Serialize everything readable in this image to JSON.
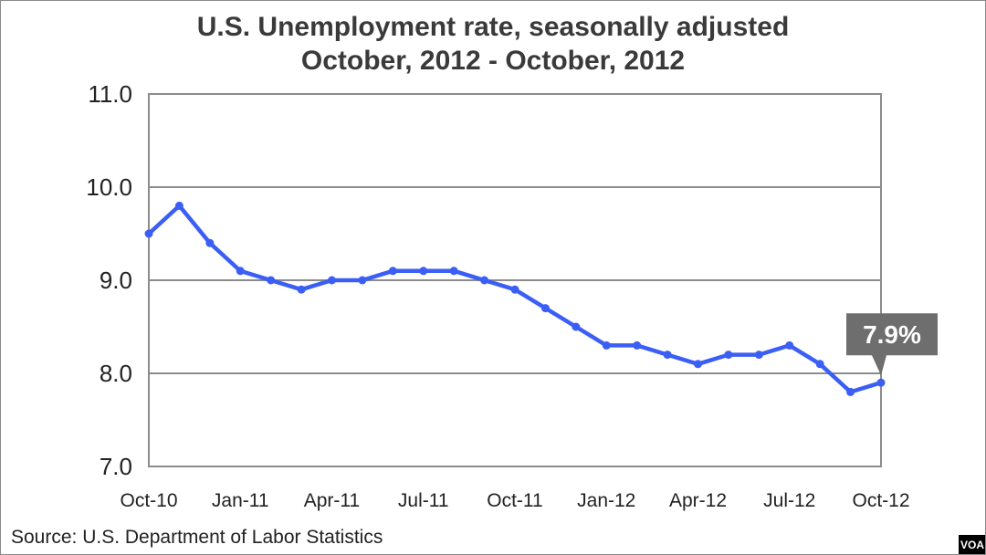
{
  "chart_data": {
    "type": "line",
    "title": "U.S. Unemployment rate, seasonally adjusted",
    "subtitle": "October, 2012 - October, 2012",
    "xlabel": "",
    "ylabel": "",
    "ylim": [
      7.0,
      11.0
    ],
    "yticks": [
      "7.0",
      "8.0",
      "9.0",
      "10.0",
      "11.0"
    ],
    "x_tick_labels": [
      "Oct-10",
      "Jan-11",
      "Apr-11",
      "Jul-11",
      "Oct-11",
      "Jan-12",
      "Apr-12",
      "Jul-12",
      "Oct-12"
    ],
    "x": [
      "Oct-10",
      "Nov-10",
      "Dec-10",
      "Jan-11",
      "Feb-11",
      "Mar-11",
      "Apr-11",
      "May-11",
      "Jun-11",
      "Jul-11",
      "Aug-11",
      "Sep-11",
      "Oct-11",
      "Nov-11",
      "Dec-11",
      "Jan-12",
      "Feb-12",
      "Mar-12",
      "Apr-12",
      "May-12",
      "Jun-12",
      "Jul-12",
      "Aug-12",
      "Sep-12",
      "Oct-12"
    ],
    "series": [
      {
        "values": [
          9.5,
          9.8,
          9.4,
          9.1,
          9.0,
          8.9,
          9.0,
          9.0,
          9.1,
          9.1,
          9.1,
          9.0,
          8.9,
          8.7,
          8.5,
          8.3,
          8.3,
          8.2,
          8.1,
          8.2,
          8.2,
          8.3,
          8.1,
          7.8,
          7.9
        ],
        "color": "#3b5ef5"
      }
    ],
    "annotation": "7.9%",
    "grid": true,
    "legend": "none",
    "source": "Source: U.S. Department of Labor Statistics"
  },
  "colors": {
    "line": "#3b5ef5",
    "callout": "#6e6e6e",
    "grid": "#8c8c8c"
  },
  "badge": "VOA"
}
